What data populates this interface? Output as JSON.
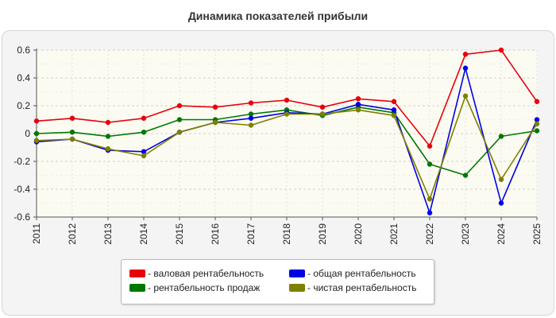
{
  "chart_data": {
    "type": "line",
    "title": "Динамика показателей прибыли",
    "xlabel": "",
    "ylabel": "",
    "ylim": [
      -0.6,
      0.6
    ],
    "yticks": [
      "0.6",
      "0.4",
      "0.2",
      "0",
      "-0.2",
      "-0.4",
      "-0.6"
    ],
    "ytick_values": [
      0.6,
      0.4,
      0.2,
      0,
      -0.2,
      -0.4,
      -0.6
    ],
    "grid": true,
    "legend_position": "bottom",
    "x": [
      "2011",
      "2012",
      "2013",
      "2014",
      "2015",
      "2016",
      "2017",
      "2018",
      "2019",
      "2020",
      "2021",
      "2022",
      "2023",
      "2024",
      "2025"
    ],
    "series": [
      {
        "name": "- валовая рентабельность",
        "color": "#e8000b",
        "values": [
          0.09,
          0.11,
          0.08,
          0.11,
          0.2,
          0.19,
          0.22,
          0.24,
          0.19,
          0.25,
          0.23,
          -0.09,
          0.57,
          0.6,
          0.23
        ]
      },
      {
        "name": "- общая рентабельность",
        "color": "#0000e6",
        "values": [
          -0.06,
          -0.04,
          -0.12,
          -0.13,
          0.01,
          0.08,
          0.11,
          0.15,
          0.14,
          0.21,
          0.17,
          -0.57,
          0.47,
          -0.5,
          0.1
        ]
      },
      {
        "name": "- рентабельность продаж",
        "color": "#007800",
        "values": [
          0.0,
          0.01,
          -0.02,
          0.01,
          0.1,
          0.1,
          0.14,
          0.17,
          0.13,
          0.19,
          0.15,
          -0.22,
          -0.3,
          -0.02,
          0.02
        ]
      },
      {
        "name": "- чистая рентабельность",
        "color": "#7f7f00",
        "values": [
          -0.05,
          -0.04,
          -0.11,
          -0.16,
          0.01,
          0.08,
          0.06,
          0.14,
          0.14,
          0.17,
          0.13,
          -0.47,
          0.27,
          -0.33,
          0.07
        ]
      }
    ]
  }
}
